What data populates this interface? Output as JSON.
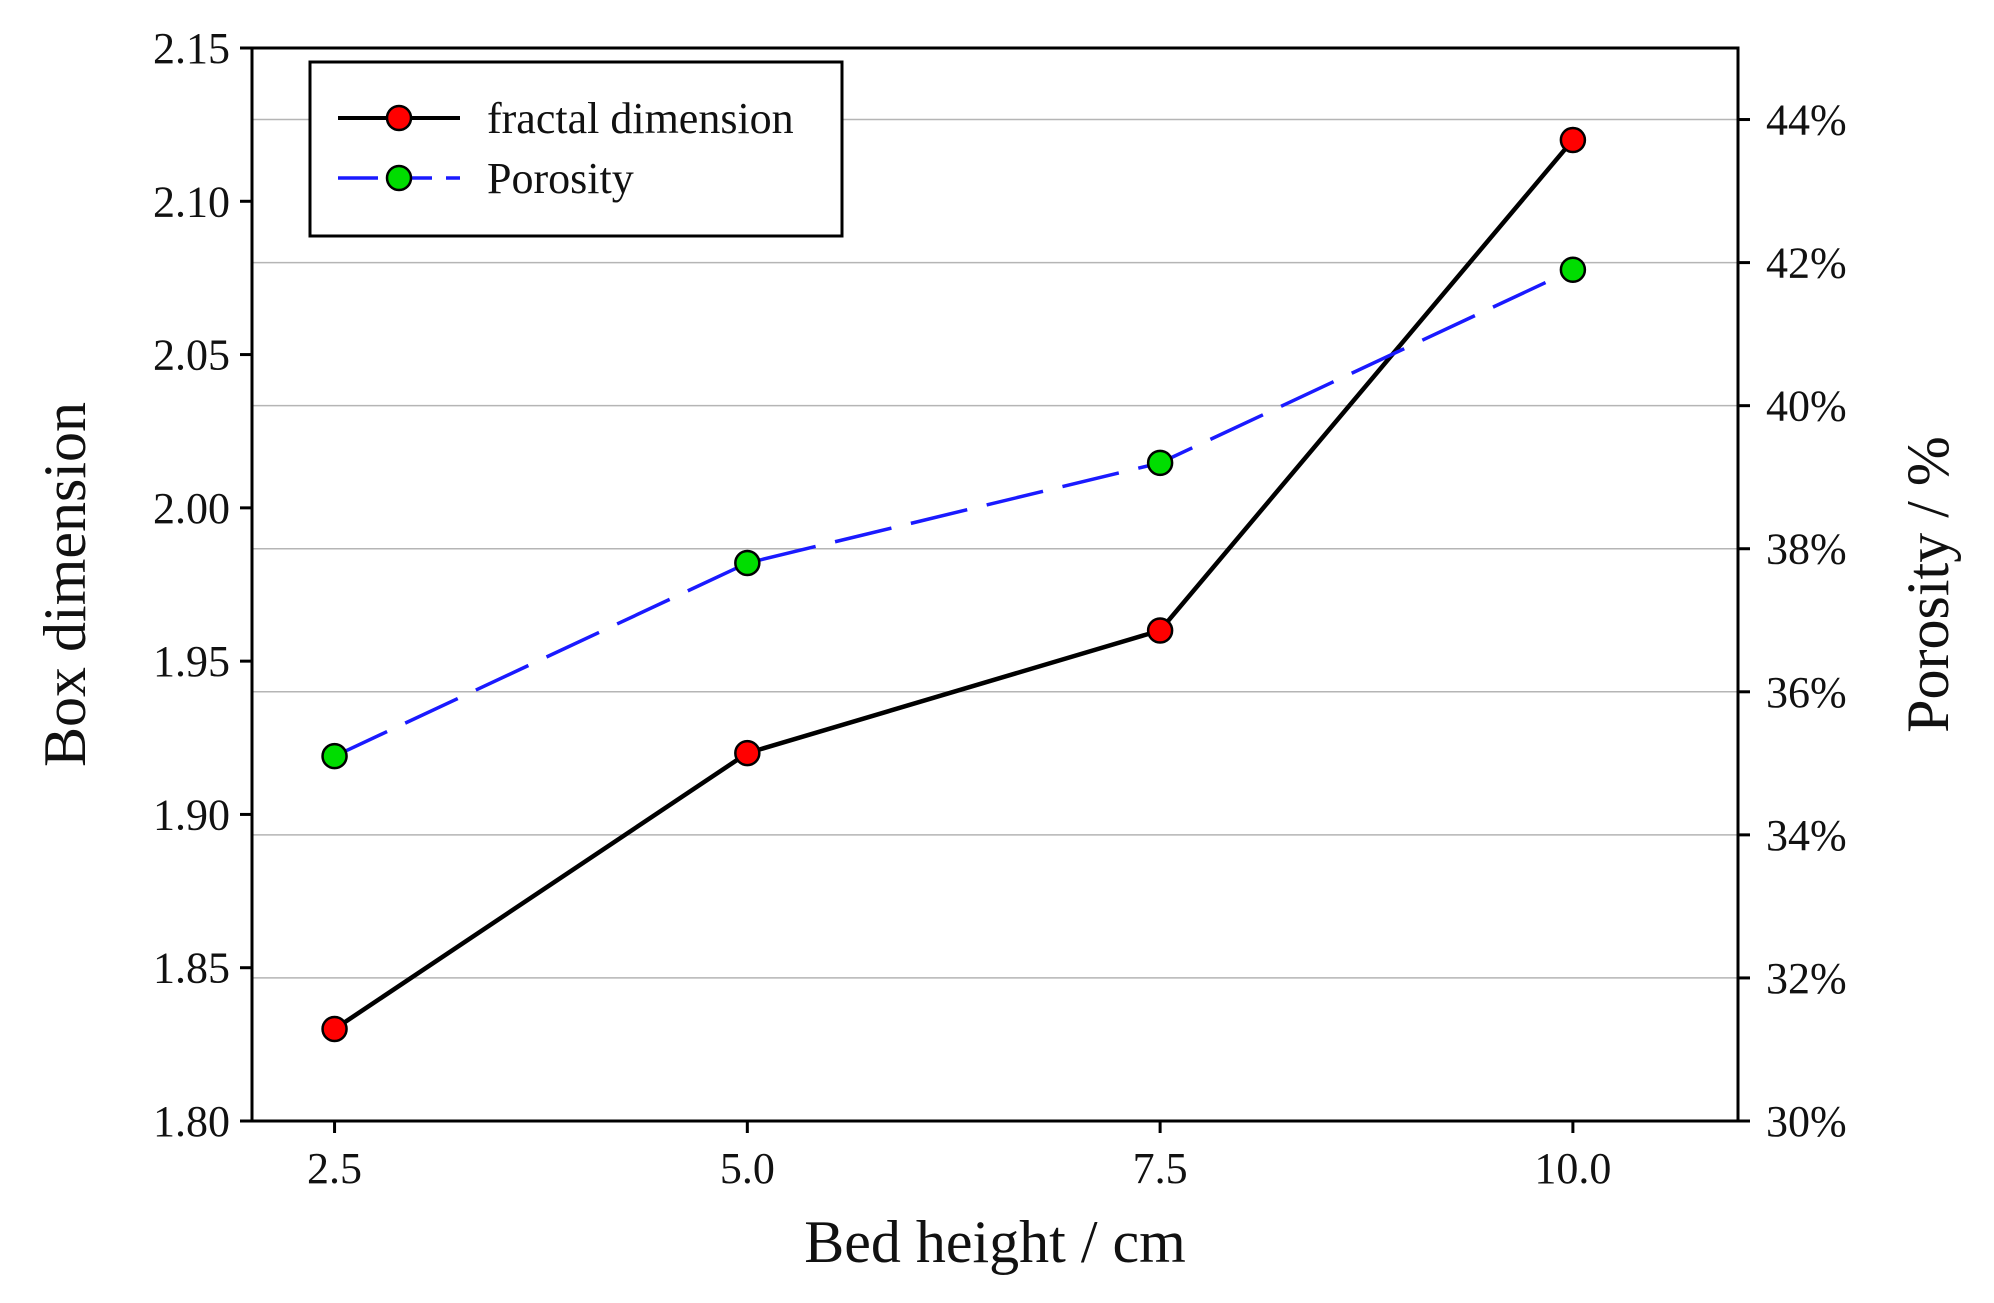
{
  "chart_data": {
    "type": "line",
    "x": [
      2.5,
      5.0,
      7.5,
      10.0
    ],
    "x_tick_labels": [
      "2.5",
      "5.0",
      "7.5",
      "10.0"
    ],
    "xlim": [
      2.0,
      11.0
    ],
    "xlabel": "Bed height / cm",
    "ylabel": "Box dimension",
    "ylim": [
      1.8,
      2.15
    ],
    "y_tick_labels": [
      "1.80",
      "1.85",
      "1.90",
      "1.95",
      "2.00",
      "2.05",
      "2.10",
      "2.15"
    ],
    "y2label": "Porosity / %",
    "y2lim": [
      30,
      45
    ],
    "y2_tick_labels": [
      "30%",
      "32%",
      "34%",
      "36%",
      "38%",
      "40%",
      "42%",
      "44%"
    ],
    "grid": "horizontal, right axis",
    "legend_position": "top-left",
    "series": [
      {
        "name": "fractal dimension",
        "axis": "left",
        "values": [
          1.83,
          1.92,
          1.96,
          2.12
        ],
        "line_color": "#000000",
        "marker_color": "#ff0000",
        "dashed": false
      },
      {
        "name": "Porosity",
        "axis": "right",
        "values": [
          35.1,
          37.8,
          39.2,
          41.9
        ],
        "line_color": "#1a1aff",
        "marker_color": "#00dd00",
        "dashed": true
      }
    ]
  }
}
